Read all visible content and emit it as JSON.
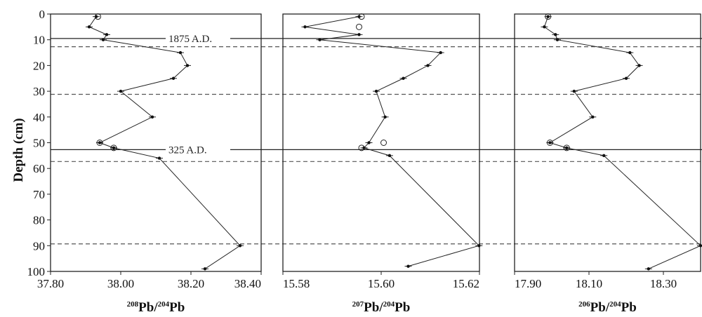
{
  "chart_data": {
    "type": "line",
    "ylabel": "Depth (cm)",
    "ylim": [
      0,
      100
    ],
    "y_inverted": true,
    "y_ticks": [
      "0",
      "10",
      "20",
      "30",
      "40",
      "50",
      "60",
      "70",
      "80",
      "90",
      "100"
    ],
    "reference_lines": [
      {
        "depth": 9.5,
        "style": "solid",
        "label": "1875 A.D."
      },
      {
        "depth": 12.7,
        "style": "dashed",
        "label": ""
      },
      {
        "depth": 31.2,
        "style": "dashed",
        "label": ""
      },
      {
        "depth": 52.7,
        "style": "solid",
        "label": "325 A.D."
      },
      {
        "depth": 57.3,
        "style": "dashed",
        "label": ""
      },
      {
        "depth": 89.3,
        "style": "dashed",
        "label": ""
      }
    ],
    "panels": [
      {
        "xlabel_sup1": "208",
        "xlabel_b1": "Pb/",
        "xlabel_sup2": "204",
        "xlabel_b2": "Pb",
        "xlim": [
          37.8,
          38.4
        ],
        "x_ticks": [
          "37.80",
          "38.00",
          "38.20",
          "38.40"
        ],
        "series": [
          {
            "name": "",
            "marker": "filled",
            "points": [
              {
                "y": 1,
                "x": 37.93
              },
              {
                "y": 5,
                "x": 37.91
              },
              {
                "y": 8,
                "x": 37.96
              },
              {
                "y": 10,
                "x": 37.95
              },
              {
                "y": 15,
                "x": 38.17
              },
              {
                "y": 20,
                "x": 38.19
              },
              {
                "y": 25,
                "x": 38.15
              },
              {
                "y": 30,
                "x": 38.0
              },
              {
                "y": 40,
                "x": 38.09
              },
              {
                "y": 50,
                "x": 37.94
              },
              {
                "y": 52,
                "x": 37.98
              },
              {
                "y": 56,
                "x": 38.11
              },
              {
                "y": 90,
                "x": 38.34
              },
              {
                "y": 99,
                "x": 38.24
              }
            ]
          },
          {
            "name": "",
            "marker": "open",
            "points": [
              {
                "y": 1,
                "x": 37.935
              },
              {
                "y": 50,
                "x": 37.94
              },
              {
                "y": 52,
                "x": 37.98
              }
            ]
          }
        ]
      },
      {
        "xlabel_sup1": "207",
        "xlabel_b1": "Pb/",
        "xlabel_sup2": "204",
        "xlabel_b2": "Pb",
        "xlim": [
          15.58,
          15.62
        ],
        "x_ticks": [
          "15.58",
          "15.60",
          "15.62"
        ],
        "series": [
          {
            "name": "",
            "marker": "filled",
            "points": [
              {
                "y": 1,
                "x": 15.5955
              },
              {
                "y": 5,
                "x": 15.5845
              },
              {
                "y": 8,
                "x": 15.5955
              },
              {
                "y": 10,
                "x": 15.5875
              },
              {
                "y": 15,
                "x": 15.6121
              },
              {
                "y": 20,
                "x": 15.6095
              },
              {
                "y": 25,
                "x": 15.6045
              },
              {
                "y": 30,
                "x": 15.599
              },
              {
                "y": 40,
                "x": 15.6008
              },
              {
                "y": 50,
                "x": 15.5975
              },
              {
                "y": 52,
                "x": 15.5965
              },
              {
                "y": 55,
                "x": 15.6017
              },
              {
                "y": 90,
                "x": 15.6199
              },
              {
                "y": 98,
                "x": 15.6055
              }
            ]
          },
          {
            "name": "",
            "marker": "open",
            "points": [
              {
                "y": 1,
                "x": 15.596
              },
              {
                "y": 5,
                "x": 15.5955
              },
              {
                "y": 50,
                "x": 15.6005
              },
              {
                "y": 52,
                "x": 15.596
              }
            ]
          }
        ]
      },
      {
        "xlabel_sup1": "206",
        "xlabel_b1": "Pb/",
        "xlabel_sup2": "204",
        "xlabel_b2": "Pb",
        "xlim": [
          17.9,
          18.4
        ],
        "x_ticks": [
          "17.90",
          "18.10",
          "18.30"
        ],
        "series": [
          {
            "name": "",
            "marker": "filled",
            "points": [
              {
                "y": 1,
                "x": 17.99
              },
              {
                "y": 5,
                "x": 17.98
              },
              {
                "y": 8,
                "x": 18.01
              },
              {
                "y": 10,
                "x": 18.015
              },
              {
                "y": 15,
                "x": 18.21
              },
              {
                "y": 20,
                "x": 18.235
              },
              {
                "y": 25,
                "x": 18.2
              },
              {
                "y": 30,
                "x": 18.06
              },
              {
                "y": 40,
                "x": 18.11
              },
              {
                "y": 50,
                "x": 17.995
              },
              {
                "y": 52,
                "x": 18.04
              },
              {
                "y": 55,
                "x": 18.14
              },
              {
                "y": 90,
                "x": 18.4
              },
              {
                "y": 99,
                "x": 18.26
              }
            ]
          },
          {
            "name": "",
            "marker": "open",
            "points": [
              {
                "y": 1,
                "x": 17.99
              },
              {
                "y": 50,
                "x": 17.995
              },
              {
                "y": 52,
                "x": 18.04
              }
            ]
          }
        ]
      }
    ]
  }
}
